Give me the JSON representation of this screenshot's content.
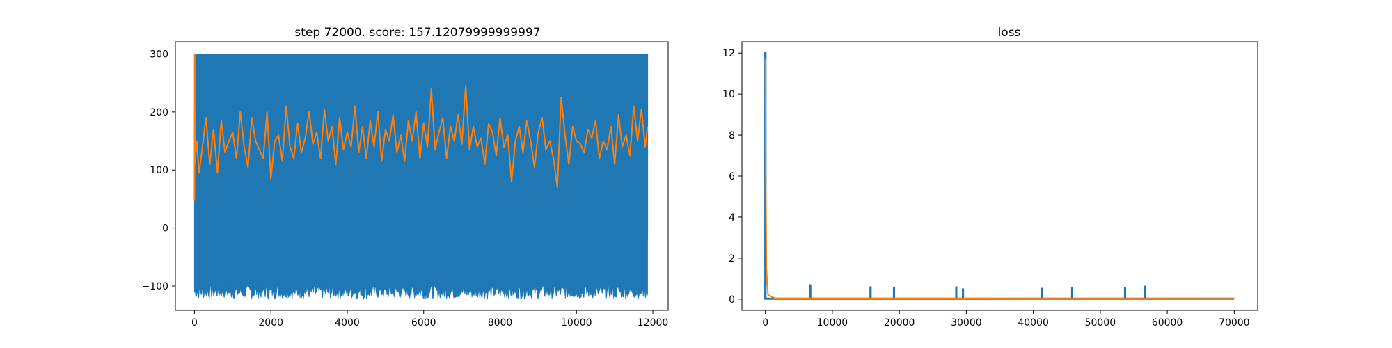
{
  "chart_data": [
    {
      "type": "line",
      "title": "step 72000. score: 157.12079999999997",
      "xlabel": "",
      "ylabel": "",
      "xlim": [
        -500,
        12400
      ],
      "ylim": [
        -142,
        321
      ],
      "xticks": [
        0,
        2000,
        4000,
        6000,
        8000,
        10000,
        12000
      ],
      "yticks": [
        -100,
        0,
        100,
        200,
        300
      ],
      "grid": false,
      "legend": "none",
      "colors": {
        "raw": "#1f77b4",
        "smoothed": "#ff7f0e"
      },
      "series": [
        {
          "role": "raw",
          "kind": "band",
          "x_range": [
            0,
            11860
          ],
          "y_min_range": [
            -122,
            -98
          ],
          "y_max": 300,
          "end_value": -20
        },
        {
          "role": "smoothed",
          "x": [
            0,
            5,
            10,
            60,
            120,
            200,
            300,
            400,
            500,
            600,
            700,
            800,
            900,
            1000,
            1100,
            1200,
            1300,
            1400,
            1500,
            1600,
            1700,
            1800,
            1900,
            2000,
            2100,
            2200,
            2300,
            2400,
            2500,
            2600,
            2700,
            2800,
            2900,
            3000,
            3100,
            3200,
            3300,
            3400,
            3500,
            3600,
            3700,
            3800,
            3900,
            4000,
            4100,
            4200,
            4300,
            4400,
            4500,
            4600,
            4700,
            4800,
            4900,
            5000,
            5100,
            5200,
            5300,
            5400,
            5500,
            5600,
            5700,
            5800,
            5900,
            6000,
            6100,
            6200,
            6300,
            6400,
            6500,
            6600,
            6700,
            6800,
            6900,
            7000,
            7100,
            7200,
            7300,
            7400,
            7500,
            7600,
            7700,
            7800,
            7900,
            8000,
            8100,
            8200,
            8300,
            8400,
            8500,
            8600,
            8700,
            8800,
            8900,
            9000,
            9100,
            9200,
            9300,
            9400,
            9500,
            9600,
            9700,
            9800,
            9900,
            10000,
            10100,
            10200,
            10300,
            10400,
            10500,
            10600,
            10700,
            10800,
            10900,
            11000,
            11100,
            11200,
            11300,
            11400,
            11500,
            11600,
            11700,
            11800,
            11860
          ],
          "y": [
            47,
            300,
            110,
            150,
            95,
            135,
            190,
            110,
            170,
            95,
            185,
            130,
            150,
            165,
            120,
            200,
            140,
            105,
            190,
            150,
            135,
            120,
            200,
            85,
            150,
            160,
            115,
            210,
            140,
            120,
            180,
            130,
            155,
            200,
            145,
            165,
            120,
            205,
            150,
            175,
            110,
            190,
            135,
            165,
            140,
            210,
            130,
            175,
            120,
            185,
            140,
            200,
            115,
            170,
            150,
            195,
            130,
            160,
            115,
            185,
            150,
            200,
            120,
            180,
            140,
            240,
            135,
            165,
            190,
            120,
            175,
            150,
            195,
            145,
            245,
            135,
            175,
            140,
            155,
            110,
            180,
            165,
            125,
            190,
            140,
            160,
            80,
            150,
            175,
            130,
            185,
            150,
            105,
            165,
            190,
            135,
            150,
            120,
            70,
            225,
            160,
            110,
            175,
            150,
            145,
            130,
            170,
            155,
            185,
            120,
            150,
            135,
            175,
            110,
            195,
            140,
            160,
            125,
            210,
            150,
            205,
            140,
            175
          ]
        }
      ]
    },
    {
      "type": "line",
      "title": "loss",
      "xlabel": "",
      "ylabel": "",
      "xlim": [
        -3500,
        73500
      ],
      "ylim": [
        -0.55,
        12.55
      ],
      "xticks": [
        0,
        10000,
        20000,
        30000,
        40000,
        50000,
        60000,
        70000
      ],
      "yticks": [
        0,
        2,
        4,
        6,
        8,
        10,
        12
      ],
      "grid": false,
      "legend": "none",
      "colors": {
        "raw": "#1f77b4",
        "smoothed": "#ff7f0e"
      },
      "series": [
        {
          "role": "raw",
          "kind": "spikes",
          "x": [
            0,
            6700,
            15700,
            19200,
            28500,
            29500,
            41300,
            45800,
            53700,
            56700
          ],
          "y": [
            12.05,
            0.72,
            0.62,
            0.57,
            0.62,
            0.52,
            0.55,
            0.6,
            0.58,
            0.65
          ],
          "baseline": 0.02,
          "x_end": 70000
        },
        {
          "role": "smoothed",
          "x": [
            0,
            60,
            150,
            400,
            1500,
            70000
          ],
          "y": [
            11.7,
            6.0,
            1.5,
            0.2,
            0.03,
            0.02
          ]
        }
      ]
    }
  ]
}
